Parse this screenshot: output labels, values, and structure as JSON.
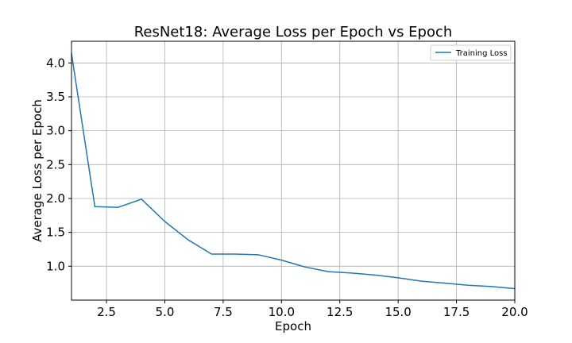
{
  "chart_data": {
    "type": "line",
    "title": "ResNet18: Average Loss per Epoch vs Epoch",
    "xlabel": "Epoch",
    "ylabel": "Average Loss per Epoch",
    "xlim": [
      1,
      20
    ],
    "ylim": [
      0.5,
      4.32
    ],
    "xticks": [
      2.5,
      5.0,
      7.5,
      10.0,
      12.5,
      15.0,
      17.5,
      20.0
    ],
    "xtick_labels": [
      "2.5",
      "5.0",
      "7.5",
      "10.0",
      "12.5",
      "15.0",
      "17.5",
      "20.0"
    ],
    "yticks": [
      1.0,
      1.5,
      2.0,
      2.5,
      3.0,
      3.5,
      4.0
    ],
    "ytick_labels": [
      "1.0",
      "1.5",
      "2.0",
      "2.5",
      "3.0",
      "3.5",
      "4.0"
    ],
    "grid": true,
    "legend_position": "top-right",
    "series": [
      {
        "name": "Training Loss",
        "color": "#1f77b4",
        "x": [
          1,
          2,
          3,
          4,
          5,
          6,
          7,
          8,
          9,
          10,
          11,
          12,
          13,
          14,
          15,
          16,
          17,
          18,
          19,
          20
        ],
        "y": [
          4.14,
          1.88,
          1.87,
          1.99,
          1.66,
          1.39,
          1.18,
          1.18,
          1.17,
          1.09,
          0.99,
          0.92,
          0.9,
          0.87,
          0.83,
          0.78,
          0.75,
          0.72,
          0.7,
          0.67
        ]
      }
    ]
  }
}
